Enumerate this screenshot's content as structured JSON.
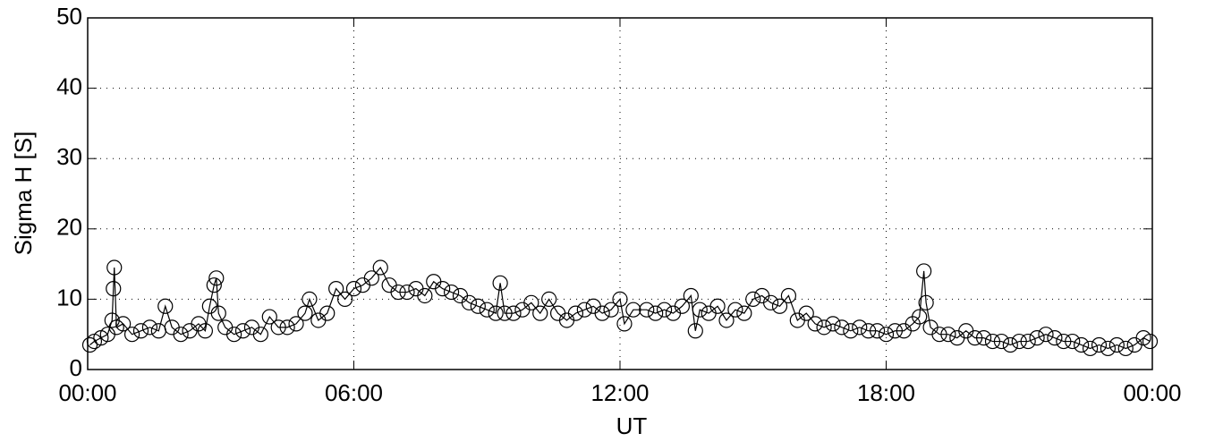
{
  "chart_data": {
    "type": "line",
    "x_label": "UT",
    "y_label": "Sigma H [S]",
    "color": "#000000",
    "marker": "open-circle",
    "grid": true,
    "xlim": [
      0,
      24
    ],
    "xticks": [
      {
        "value": 0,
        "label": "00:00"
      },
      {
        "value": 6,
        "label": "06:00"
      },
      {
        "value": 12,
        "label": "12:00"
      },
      {
        "value": 18,
        "label": "18:00"
      },
      {
        "value": 24,
        "label": "00:00"
      }
    ],
    "ylim": [
      0,
      50
    ],
    "yticks": [
      0,
      10,
      20,
      30,
      40,
      50
    ],
    "x": [
      0.05,
      0.15,
      0.3,
      0.45,
      0.55,
      0.58,
      0.6,
      0.65,
      0.8,
      1.0,
      1.2,
      1.4,
      1.6,
      1.75,
      1.9,
      2.1,
      2.3,
      2.5,
      2.65,
      2.75,
      2.85,
      2.9,
      2.95,
      3.1,
      3.3,
      3.5,
      3.7,
      3.9,
      4.1,
      4.3,
      4.5,
      4.7,
      4.9,
      5.0,
      5.2,
      5.4,
      5.6,
      5.8,
      6.0,
      6.2,
      6.4,
      6.6,
      6.8,
      7.0,
      7.2,
      7.4,
      7.6,
      7.8,
      8.0,
      8.2,
      8.4,
      8.6,
      8.8,
      9.0,
      9.2,
      9.3,
      9.4,
      9.6,
      9.8,
      10.0,
      10.2,
      10.4,
      10.6,
      10.8,
      11.0,
      11.2,
      11.4,
      11.6,
      11.8,
      12.0,
      12.1,
      12.3,
      12.6,
      12.8,
      13.0,
      13.2,
      13.4,
      13.6,
      13.7,
      13.8,
      14.0,
      14.2,
      14.4,
      14.6,
      14.8,
      15.0,
      15.2,
      15.4,
      15.6,
      15.8,
      16.0,
      16.2,
      16.4,
      16.6,
      16.8,
      17.0,
      17.2,
      17.4,
      17.6,
      17.8,
      18.0,
      18.2,
      18.4,
      18.6,
      18.75,
      18.85,
      18.9,
      19.0,
      19.2,
      19.4,
      19.6,
      19.8,
      20.0,
      20.2,
      20.4,
      20.6,
      20.8,
      21.0,
      21.2,
      21.4,
      21.6,
      21.8,
      22.0,
      22.2,
      22.4,
      22.6,
      22.8,
      23.0,
      23.2,
      23.4,
      23.6,
      23.8,
      23.95
    ],
    "values": [
      3.5,
      4,
      4.5,
      5,
      7,
      11.5,
      14.5,
      6,
      6.5,
      5,
      5.5,
      6,
      5.5,
      9,
      6,
      5,
      5.5,
      6.5,
      5.5,
      9,
      12,
      13,
      8,
      6,
      5,
      5.5,
      6,
      5,
      7.5,
      6,
      6,
      6.5,
      8,
      10,
      7,
      8,
      11.5,
      10,
      11.5,
      12,
      13,
      14.5,
      12,
      11,
      11,
      11.5,
      10.5,
      12.5,
      11.5,
      11,
      10.5,
      9.5,
      9,
      8.5,
      8,
      12.3,
      8,
      8,
      8.5,
      9.5,
      8,
      10,
      8,
      7,
      8,
      8.5,
      9,
      8,
      8.5,
      10,
      6.5,
      8.5,
      8.5,
      8,
      8.5,
      8,
      9,
      10.5,
      5.5,
      8.5,
      8,
      9,
      7,
      8.5,
      8,
      10,
      10.5,
      9.5,
      9,
      10.5,
      7,
      8,
      6.5,
      6,
      6.5,
      6,
      5.5,
      6,
      5.5,
      5.5,
      5,
      5.5,
      5.5,
      6.5,
      7.5,
      14,
      9.5,
      6,
      5,
      5,
      4.5,
      5.5,
      4.5,
      4.5,
      4,
      4,
      3.5,
      4,
      4,
      4.5,
      5,
      4.5,
      4,
      4,
      3.5,
      3,
      3.5,
      3,
      3.5,
      3,
      3.5,
      4.5,
      4
    ]
  }
}
